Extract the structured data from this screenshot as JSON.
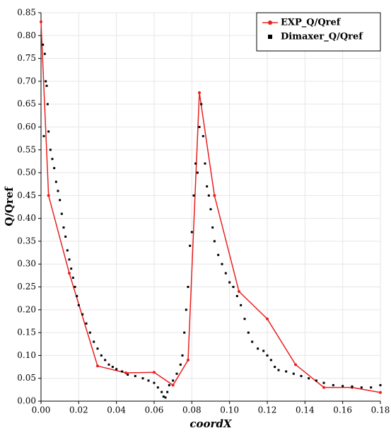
{
  "chart_data": {
    "type": "combo",
    "x_label": "coordX",
    "y_label": "Q/Qref",
    "xlim": [
      0,
      0.18
    ],
    "ylim": [
      0,
      0.85
    ],
    "xticks": [
      {
        "value": 0,
        "label": "0.00"
      },
      0.02,
      0.04,
      0.06,
      0.08,
      {
        "value": 0.1,
        "label": "0.10"
      },
      0.12,
      0.14,
      0.16,
      0.18
    ],
    "yticks": [
      {
        "value": 0,
        "label": "0.00"
      },
      0.05,
      {
        "value": 0.1,
        "label": "0.10"
      },
      0.15,
      {
        "value": 0.2,
        "label": "0.20"
      },
      0.25,
      {
        "value": 0.3,
        "label": "0.30"
      },
      0.35,
      {
        "value": 0.4,
        "label": "0.40"
      },
      0.45,
      {
        "value": 0.5,
        "label": "0.50"
      },
      0.55,
      {
        "value": 0.6,
        "label": "0.60"
      },
      0.65,
      {
        "value": 0.7,
        "label": "0.70"
      },
      0.75,
      {
        "value": 0.8,
        "label": "0.80"
      },
      0.85
    ],
    "grid": true,
    "legend": "upper right",
    "series": [
      {
        "name": "EXP_Q/Qref",
        "type": "line",
        "color": "#e8201f",
        "x": [
          0,
          0.004,
          0.015,
          0.03,
          0.045,
          0.06,
          0.07,
          0.078,
          0.084,
          0.092,
          0.105,
          0.12,
          0.135,
          0.15,
          0.165,
          0.18
        ],
        "values": [
          0.83,
          0.45,
          0.28,
          0.077,
          0.062,
          0.063,
          0.035,
          0.09,
          0.675,
          0.45,
          0.24,
          0.18,
          0.08,
          0.03,
          0.03,
          0.019
        ]
      },
      {
        "name": "Dimaxer_Q/Qref",
        "type": "scatter",
        "color": "#000000",
        "x": [
          0.001,
          0.0015,
          0.002,
          0.0025,
          0.003,
          0.0035,
          0.004,
          0.005,
          0.006,
          0.007,
          0.008,
          0.009,
          0.01,
          0.011,
          0.012,
          0.013,
          0.014,
          0.015,
          0.016,
          0.017,
          0.018,
          0.019,
          0.02,
          0.022,
          0.024,
          0.026,
          0.028,
          0.03,
          0.032,
          0.034,
          0.036,
          0.038,
          0.04,
          0.043,
          0.046,
          0.05,
          0.054,
          0.057,
          0.06,
          0.062,
          0.064,
          0.065,
          0.066,
          0.067,
          0.068,
          0.07,
          0.072,
          0.074,
          0.075,
          0.076,
          0.077,
          0.078,
          0.079,
          0.08,
          0.081,
          0.082,
          0.083,
          0.084,
          0.085,
          0.086,
          0.087,
          0.088,
          0.089,
          0.09,
          0.091,
          0.092,
          0.094,
          0.096,
          0.098,
          0.1,
          0.102,
          0.104,
          0.106,
          0.108,
          0.11,
          0.112,
          0.115,
          0.118,
          0.12,
          0.122,
          0.124,
          0.126,
          0.13,
          0.134,
          0.138,
          0.142,
          0.146,
          0.15,
          0.155,
          0.16,
          0.165,
          0.17,
          0.175,
          0.18
        ],
        "values": [
          0.78,
          0.58,
          0.76,
          0.7,
          0.69,
          0.65,
          0.59,
          0.55,
          0.53,
          0.51,
          0.48,
          0.46,
          0.44,
          0.41,
          0.38,
          0.36,
          0.33,
          0.31,
          0.29,
          0.27,
          0.25,
          0.23,
          0.21,
          0.19,
          0.17,
          0.15,
          0.13,
          0.115,
          0.1,
          0.09,
          0.08,
          0.075,
          0.07,
          0.065,
          0.058,
          0.055,
          0.05,
          0.045,
          0.04,
          0.03,
          0.02,
          0.01,
          0.008,
          0.02,
          0.035,
          0.045,
          0.06,
          0.08,
          0.1,
          0.15,
          0.2,
          0.25,
          0.34,
          0.37,
          0.45,
          0.52,
          0.5,
          0.6,
          0.65,
          0.58,
          0.52,
          0.47,
          0.45,
          0.42,
          0.38,
          0.35,
          0.32,
          0.3,
          0.28,
          0.26,
          0.25,
          0.23,
          0.21,
          0.18,
          0.15,
          0.13,
          0.115,
          0.11,
          0.1,
          0.09,
          0.075,
          0.068,
          0.065,
          0.06,
          0.055,
          0.05,
          0.045,
          0.04,
          0.035,
          0.033,
          0.032,
          0.03,
          0.03,
          0.035
        ]
      }
    ]
  }
}
